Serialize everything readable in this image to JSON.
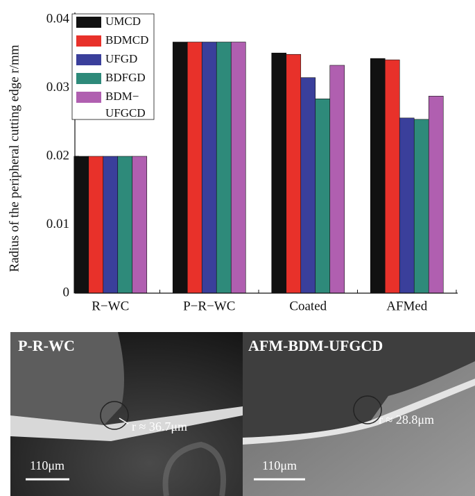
{
  "chart_data": {
    "type": "bar",
    "y_label": "Radius of the peripheral cutting edge r/mm",
    "categories": [
      "R−WC",
      "P−R−WC",
      "Coated",
      "AFMed"
    ],
    "series": [
      {
        "name": "UMCD",
        "color": "#111111",
        "values": [
          0.02,
          0.0367,
          0.0351,
          0.0343
        ]
      },
      {
        "name": "BDMCD",
        "color": "#e8312a",
        "values": [
          0.02,
          0.0367,
          0.0349,
          0.0341
        ]
      },
      {
        "name": "UFGD",
        "color": "#3a3f9b",
        "values": [
          0.02,
          0.0367,
          0.0315,
          0.0256
        ]
      },
      {
        "name": "BDFGD",
        "color": "#2e8a7a",
        "values": [
          0.02,
          0.0367,
          0.0284,
          0.0254
        ]
      },
      {
        "name": "BDM−UFGCD",
        "color": "#b05fb0",
        "values": [
          0.02,
          0.0367,
          0.0333,
          0.0288
        ]
      }
    ],
    "ylim": [
      0,
      0.04
    ],
    "yticks": [
      0,
      0.01,
      0.02,
      0.03,
      0.04
    ],
    "legend": "upper left"
  },
  "images": [
    {
      "title": "P-R-WC",
      "annotation": "r ≈ 36.7μm",
      "scale_bar": "110μm"
    },
    {
      "title": "AFM-BDM-UFGCD",
      "annotation": "r ≈ 28.8μm",
      "scale_bar": "110μm"
    }
  ]
}
